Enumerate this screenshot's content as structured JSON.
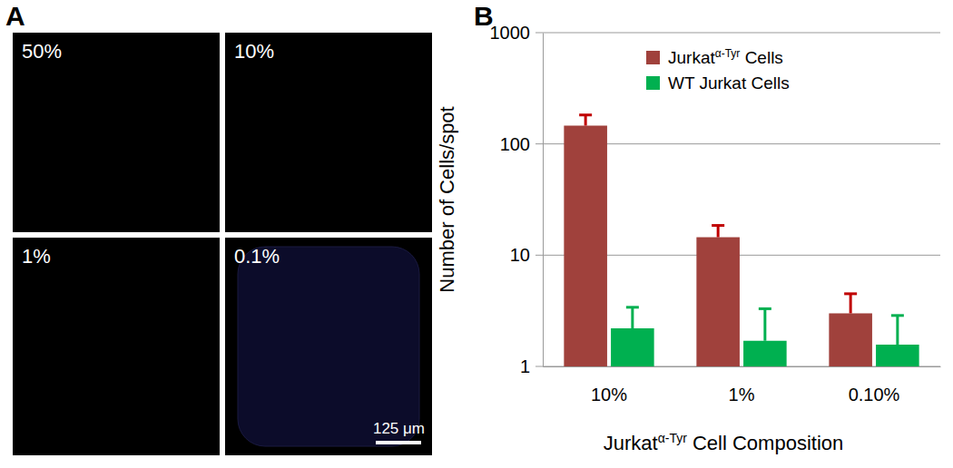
{
  "figure": {
    "panel_letters": [
      "A",
      "B"
    ],
    "images": [
      "50%",
      "10%",
      "1%",
      "0.1%"
    ],
    "scale_bar": "125 μm"
  },
  "chart_data": {
    "type": "bar",
    "log": "y",
    "grid": true,
    "legend": "top",
    "superscript": "α-Tyr",
    "xlabel": "Jurkatα-Tyr Cell Composition",
    "ylabel": "Number of Cells/spot",
    "categories": [
      "10%",
      "1%",
      "0.10%"
    ],
    "ylim": [
      1,
      1000
    ],
    "yticks": [
      1,
      10,
      100,
      1000
    ],
    "series": [
      {
        "name": "Jurkatα-Tyr Cells",
        "color": "#a0413c",
        "error_color": "#c00000",
        "values": [
          146,
          14.5,
          3.0
        ],
        "errors": [
          36,
          4,
          1.5
        ]
      },
      {
        "name": "WT Jurkat Cells",
        "color": "#00b050",
        "error_color": "#00b050",
        "values": [
          2.2,
          1.7,
          1.57
        ],
        "errors": [
          1.2,
          1.6,
          1.3
        ]
      }
    ]
  }
}
